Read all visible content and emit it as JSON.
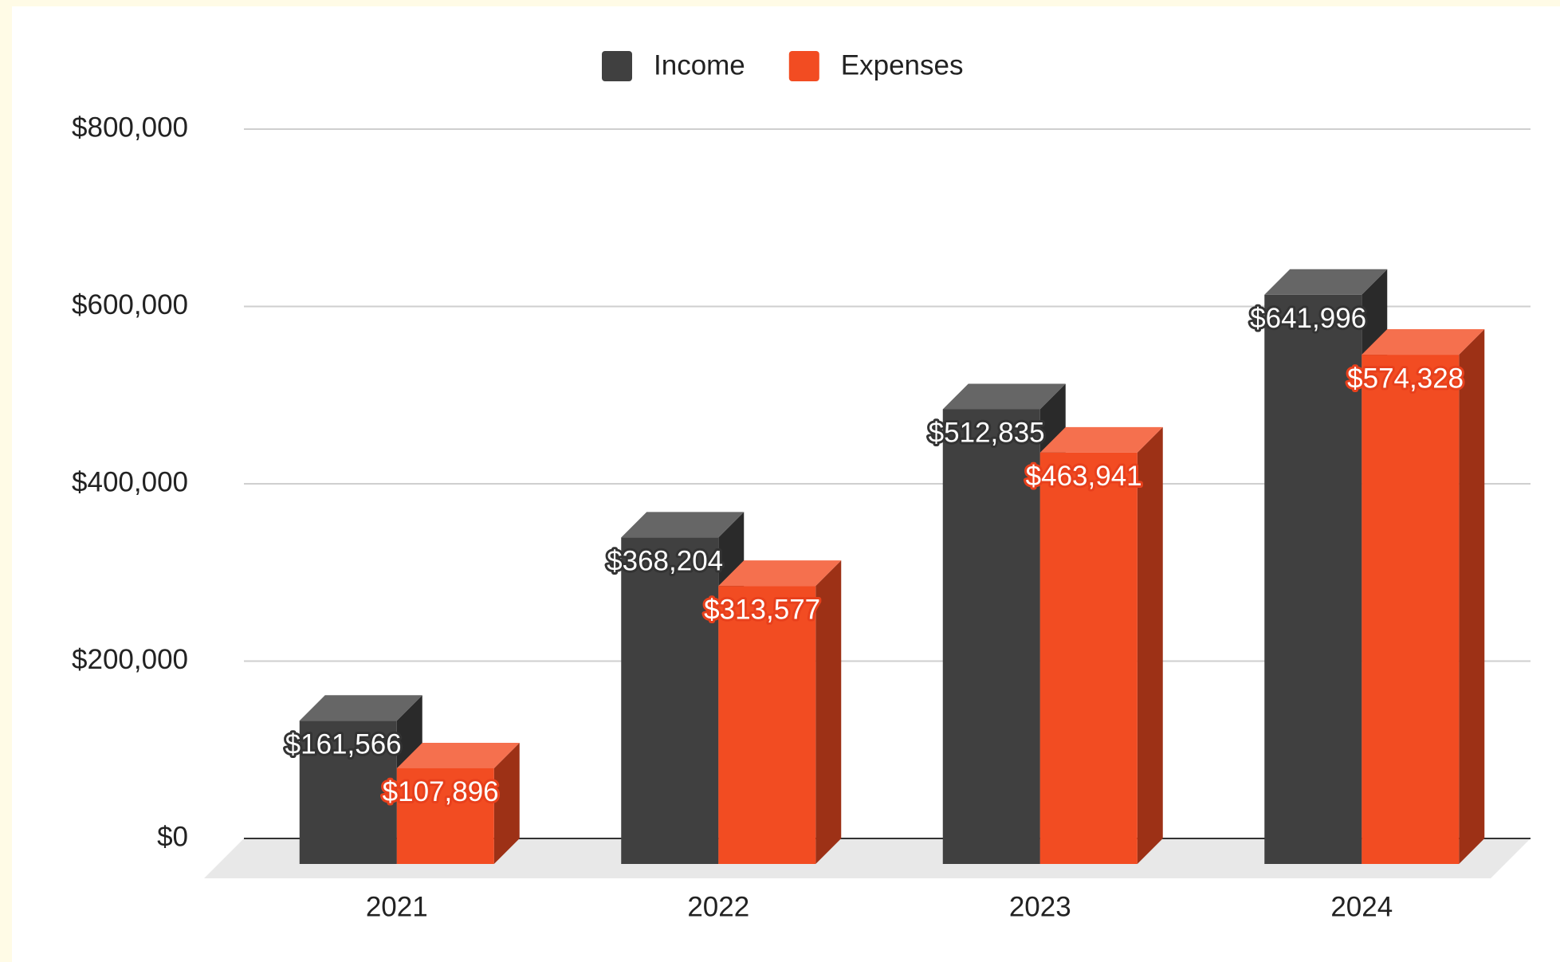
{
  "chart_data": {
    "type": "bar3d",
    "categories": [
      "2021",
      "2022",
      "2023",
      "2024"
    ],
    "series": [
      {
        "name": "Income",
        "color": "#404040",
        "values": [
          161566,
          368204,
          512835,
          641996
        ],
        "value_labels": [
          "$161,566",
          "$368,204",
          "$512,835",
          "$641,996"
        ]
      },
      {
        "name": "Expenses",
        "color": "#f24c22",
        "values": [
          107896,
          313577,
          463941,
          574328
        ],
        "value_labels": [
          "$107,896",
          "$313,577",
          "$463,941",
          "$574,328"
        ]
      }
    ],
    "ylim": [
      0,
      800000
    ],
    "yticks": [
      {
        "value": 0,
        "label": "$0"
      },
      {
        "value": 200000,
        "label": "$200,000"
      },
      {
        "value": 400000,
        "label": "$400,000"
      },
      {
        "value": 600000,
        "label": "$600,000"
      },
      {
        "value": 800000,
        "label": "$800,000"
      }
    ],
    "grid": true,
    "legend": "top"
  }
}
